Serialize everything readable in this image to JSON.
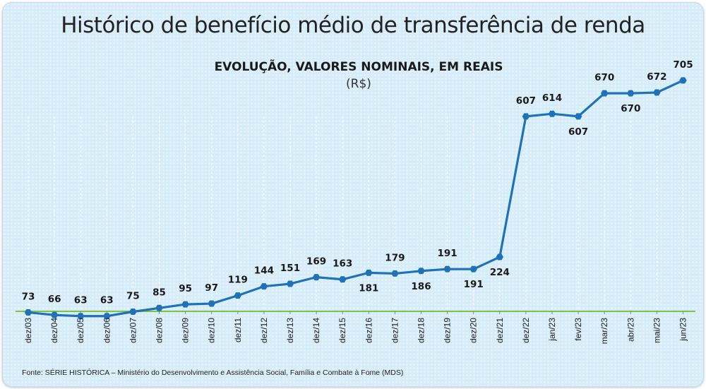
{
  "header": {
    "title": "Histórico de benefício médio de transferência de renda"
  },
  "chart_data": {
    "type": "line",
    "title": "EVOLUÇÃO, VALORES NOMINAIS, EM REAIS",
    "subtitle": "(R$)",
    "xlabel": "",
    "ylabel": "",
    "ylim": [
      0,
      750
    ],
    "grid": "vertical dashed",
    "categories": [
      "dez/03",
      "dez/04",
      "dez/05",
      "dez/06",
      "dez/07",
      "dez/08",
      "dez/09",
      "dez/10",
      "dez/11",
      "dez/12",
      "dez/13",
      "dez/14",
      "dez/15",
      "dez/16",
      "dez/17",
      "dez/18",
      "dez/19",
      "dez/20",
      "dez/21",
      "dez/22",
      "jan/23",
      "fev/23",
      "mar/23",
      "abr/23",
      "mai/23",
      "jun/23"
    ],
    "values": [
      73,
      66,
      63,
      63,
      75,
      85,
      95,
      97,
      119,
      144,
      151,
      169,
      163,
      181,
      179,
      186,
      191,
      191,
      224,
      607,
      614,
      607,
      670,
      670,
      672,
      705
    ],
    "label_positions": [
      "above",
      "above",
      "above",
      "above",
      "above",
      "above",
      "above",
      "above",
      "above",
      "above",
      "above",
      "above",
      "above",
      "below",
      "above",
      "below",
      "above",
      "below",
      "below",
      "above",
      "above",
      "below",
      "above",
      "below",
      "above",
      "above"
    ],
    "line_color": "#1f72b8",
    "baseline_color": "#7dc242"
  },
  "footer": {
    "source": "Fonte: SÉRIE HISTÓRICA – Ministério do Desenvolvimento e Assistência Social, Família e Combate à Fome (MDS)"
  }
}
